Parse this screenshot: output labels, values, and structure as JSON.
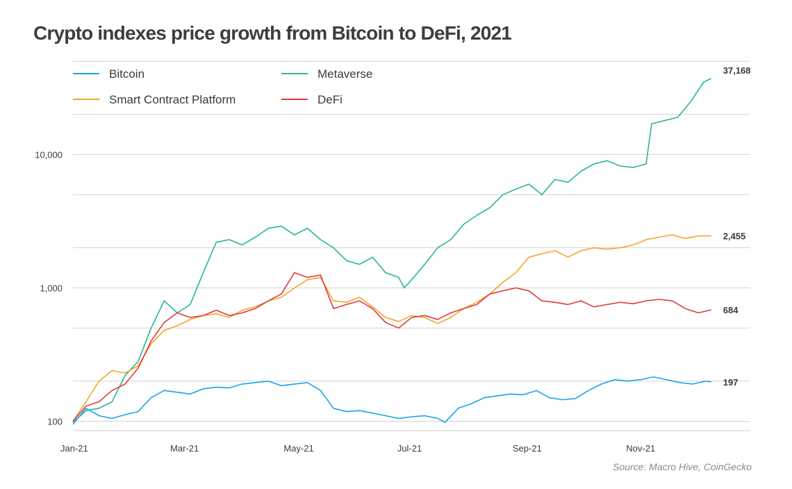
{
  "title": "Crypto indexes price growth from Bitcoin to DeFi, 2021",
  "source": "Source: Macro Hive, CoinGecko",
  "chart_data": {
    "type": "line",
    "yscale": "log",
    "ylim": [
      85,
      52000
    ],
    "xlim": [
      "2021-01-01",
      "2021-12-31"
    ],
    "y_ticks": [
      {
        "value": 100,
        "label": "100"
      },
      {
        "value": 1000,
        "label": "1,000"
      },
      {
        "value": 10000,
        "label": "10,000"
      }
    ],
    "x_ticks": [
      {
        "date": "2021-01-01",
        "label": "Jan-21"
      },
      {
        "date": "2021-03-01",
        "label": "Mar-21"
      },
      {
        "date": "2021-05-01",
        "label": "May-21"
      },
      {
        "date": "2021-07-01",
        "label": "Jul-21"
      },
      {
        "date": "2021-09-01",
        "label": "Sep-21"
      },
      {
        "date": "2021-11-01",
        "label": "Nov-21"
      }
    ],
    "grid": "horizontal",
    "legend": "top-left",
    "series": [
      {
        "name": "Bitcoin",
        "color": "#1aa3e8",
        "end_label": "197",
        "points": [
          [
            "2021-01-01",
            95
          ],
          [
            "2021-01-08",
            125
          ],
          [
            "2021-01-15",
            110
          ],
          [
            "2021-01-22",
            105
          ],
          [
            "2021-01-29",
            112
          ],
          [
            "2021-02-05",
            118
          ],
          [
            "2021-02-12",
            150
          ],
          [
            "2021-02-19",
            170
          ],
          [
            "2021-02-26",
            165
          ],
          [
            "2021-03-05",
            160
          ],
          [
            "2021-03-12",
            175
          ],
          [
            "2021-03-19",
            180
          ],
          [
            "2021-03-26",
            178
          ],
          [
            "2021-04-02",
            190
          ],
          [
            "2021-04-09",
            195
          ],
          [
            "2021-04-16",
            200
          ],
          [
            "2021-04-23",
            185
          ],
          [
            "2021-04-30",
            190
          ],
          [
            "2021-05-07",
            195
          ],
          [
            "2021-05-14",
            170
          ],
          [
            "2021-05-21",
            125
          ],
          [
            "2021-05-28",
            118
          ],
          [
            "2021-06-04",
            120
          ],
          [
            "2021-06-11",
            115
          ],
          [
            "2021-06-18",
            110
          ],
          [
            "2021-06-25",
            105
          ],
          [
            "2021-07-02",
            108
          ],
          [
            "2021-07-09",
            110
          ],
          [
            "2021-07-16",
            105
          ],
          [
            "2021-07-20",
            98
          ],
          [
            "2021-07-27",
            125
          ],
          [
            "2021-08-03",
            135
          ],
          [
            "2021-08-10",
            150
          ],
          [
            "2021-08-17",
            155
          ],
          [
            "2021-08-24",
            160
          ],
          [
            "2021-08-31",
            158
          ],
          [
            "2021-09-07",
            170
          ],
          [
            "2021-09-14",
            150
          ],
          [
            "2021-09-21",
            145
          ],
          [
            "2021-09-28",
            148
          ],
          [
            "2021-10-05",
            170
          ],
          [
            "2021-10-12",
            190
          ],
          [
            "2021-10-19",
            205
          ],
          [
            "2021-10-26",
            200
          ],
          [
            "2021-11-02",
            205
          ],
          [
            "2021-11-09",
            215
          ],
          [
            "2021-11-16",
            205
          ],
          [
            "2021-11-23",
            195
          ],
          [
            "2021-11-30",
            190
          ],
          [
            "2021-12-07",
            200
          ],
          [
            "2021-12-10",
            197
          ]
        ]
      },
      {
        "name": "Metaverse",
        "color": "#27b597",
        "end_label": "37,168",
        "points": [
          [
            "2021-01-01",
            98
          ],
          [
            "2021-01-08",
            120
          ],
          [
            "2021-01-15",
            125
          ],
          [
            "2021-01-22",
            140
          ],
          [
            "2021-01-29",
            220
          ],
          [
            "2021-02-05",
            280
          ],
          [
            "2021-02-12",
            500
          ],
          [
            "2021-02-19",
            800
          ],
          [
            "2021-02-26",
            650
          ],
          [
            "2021-03-05",
            750
          ],
          [
            "2021-03-12",
            1300
          ],
          [
            "2021-03-19",
            2200
          ],
          [
            "2021-03-26",
            2300
          ],
          [
            "2021-04-02",
            2100
          ],
          [
            "2021-04-09",
            2400
          ],
          [
            "2021-04-16",
            2800
          ],
          [
            "2021-04-23",
            2900
          ],
          [
            "2021-04-30",
            2500
          ],
          [
            "2021-05-07",
            2800
          ],
          [
            "2021-05-14",
            2300
          ],
          [
            "2021-05-21",
            2000
          ],
          [
            "2021-05-28",
            1600
          ],
          [
            "2021-06-04",
            1500
          ],
          [
            "2021-06-11",
            1700
          ],
          [
            "2021-06-18",
            1300
          ],
          [
            "2021-06-25",
            1200
          ],
          [
            "2021-06-28",
            1000
          ],
          [
            "2021-07-02",
            1150
          ],
          [
            "2021-07-09",
            1500
          ],
          [
            "2021-07-16",
            2000
          ],
          [
            "2021-07-23",
            2300
          ],
          [
            "2021-07-30",
            3000
          ],
          [
            "2021-08-06",
            3500
          ],
          [
            "2021-08-13",
            4000
          ],
          [
            "2021-08-20",
            5000
          ],
          [
            "2021-08-27",
            5500
          ],
          [
            "2021-09-03",
            6000
          ],
          [
            "2021-09-10",
            5000
          ],
          [
            "2021-09-17",
            6500
          ],
          [
            "2021-09-24",
            6200
          ],
          [
            "2021-10-01",
            7500
          ],
          [
            "2021-10-08",
            8500
          ],
          [
            "2021-10-15",
            9000
          ],
          [
            "2021-10-22",
            8200
          ],
          [
            "2021-10-29",
            8000
          ],
          [
            "2021-11-05",
            8500
          ],
          [
            "2021-11-08",
            17000
          ],
          [
            "2021-11-15",
            18000
          ],
          [
            "2021-11-22",
            19000
          ],
          [
            "2021-11-29",
            25000
          ],
          [
            "2021-12-06",
            35000
          ],
          [
            "2021-12-10",
            37168
          ]
        ]
      },
      {
        "name": "Smart Contract Platform",
        "color": "#f2a52b",
        "end_label": "2,455",
        "points": [
          [
            "2021-01-01",
            100
          ],
          [
            "2021-01-08",
            140
          ],
          [
            "2021-01-15",
            200
          ],
          [
            "2021-01-22",
            240
          ],
          [
            "2021-01-29",
            230
          ],
          [
            "2021-02-05",
            260
          ],
          [
            "2021-02-12",
            380
          ],
          [
            "2021-02-19",
            480
          ],
          [
            "2021-02-26",
            520
          ],
          [
            "2021-03-05",
            580
          ],
          [
            "2021-03-12",
            620
          ],
          [
            "2021-03-19",
            640
          ],
          [
            "2021-03-26",
            600
          ],
          [
            "2021-04-02",
            680
          ],
          [
            "2021-04-09",
            720
          ],
          [
            "2021-04-16",
            800
          ],
          [
            "2021-04-23",
            850
          ],
          [
            "2021-04-30",
            1000
          ],
          [
            "2021-05-07",
            1150
          ],
          [
            "2021-05-14",
            1200
          ],
          [
            "2021-05-21",
            800
          ],
          [
            "2021-05-28",
            780
          ],
          [
            "2021-06-04",
            850
          ],
          [
            "2021-06-11",
            720
          ],
          [
            "2021-06-18",
            600
          ],
          [
            "2021-06-25",
            560
          ],
          [
            "2021-07-02",
            620
          ],
          [
            "2021-07-09",
            600
          ],
          [
            "2021-07-16",
            540
          ],
          [
            "2021-07-23",
            600
          ],
          [
            "2021-07-30",
            700
          ],
          [
            "2021-08-06",
            780
          ],
          [
            "2021-08-13",
            900
          ],
          [
            "2021-08-20",
            1100
          ],
          [
            "2021-08-27",
            1300
          ],
          [
            "2021-09-03",
            1700
          ],
          [
            "2021-09-10",
            1800
          ],
          [
            "2021-09-17",
            1900
          ],
          [
            "2021-09-24",
            1700
          ],
          [
            "2021-10-01",
            1900
          ],
          [
            "2021-10-08",
            2000
          ],
          [
            "2021-10-15",
            1950
          ],
          [
            "2021-10-22",
            2000
          ],
          [
            "2021-10-29",
            2100
          ],
          [
            "2021-11-05",
            2300
          ],
          [
            "2021-11-12",
            2400
          ],
          [
            "2021-11-19",
            2500
          ],
          [
            "2021-11-26",
            2350
          ],
          [
            "2021-12-03",
            2450
          ],
          [
            "2021-12-10",
            2455
          ]
        ]
      },
      {
        "name": "DeFi",
        "color": "#e03a3a",
        "end_label": "684",
        "points": [
          [
            "2021-01-01",
            100
          ],
          [
            "2021-01-08",
            130
          ],
          [
            "2021-01-15",
            140
          ],
          [
            "2021-01-22",
            170
          ],
          [
            "2021-01-29",
            190
          ],
          [
            "2021-02-05",
            250
          ],
          [
            "2021-02-12",
            400
          ],
          [
            "2021-02-19",
            550
          ],
          [
            "2021-02-26",
            650
          ],
          [
            "2021-03-05",
            600
          ],
          [
            "2021-03-12",
            620
          ],
          [
            "2021-03-19",
            680
          ],
          [
            "2021-03-26",
            620
          ],
          [
            "2021-04-02",
            650
          ],
          [
            "2021-04-09",
            700
          ],
          [
            "2021-04-16",
            800
          ],
          [
            "2021-04-23",
            900
          ],
          [
            "2021-04-30",
            1300
          ],
          [
            "2021-05-07",
            1200
          ],
          [
            "2021-05-14",
            1250
          ],
          [
            "2021-05-21",
            700
          ],
          [
            "2021-05-28",
            750
          ],
          [
            "2021-06-04",
            800
          ],
          [
            "2021-06-11",
            700
          ],
          [
            "2021-06-18",
            550
          ],
          [
            "2021-06-25",
            500
          ],
          [
            "2021-07-02",
            600
          ],
          [
            "2021-07-09",
            620
          ],
          [
            "2021-07-16",
            580
          ],
          [
            "2021-07-23",
            650
          ],
          [
            "2021-07-30",
            700
          ],
          [
            "2021-08-06",
            750
          ],
          [
            "2021-08-13",
            900
          ],
          [
            "2021-08-20",
            950
          ],
          [
            "2021-08-27",
            1000
          ],
          [
            "2021-09-03",
            950
          ],
          [
            "2021-09-10",
            800
          ],
          [
            "2021-09-17",
            780
          ],
          [
            "2021-09-24",
            750
          ],
          [
            "2021-10-01",
            800
          ],
          [
            "2021-10-08",
            720
          ],
          [
            "2021-10-15",
            750
          ],
          [
            "2021-10-22",
            780
          ],
          [
            "2021-10-29",
            760
          ],
          [
            "2021-11-05",
            800
          ],
          [
            "2021-11-12",
            820
          ],
          [
            "2021-11-19",
            800
          ],
          [
            "2021-11-26",
            700
          ],
          [
            "2021-12-03",
            650
          ],
          [
            "2021-12-10",
            684
          ]
        ]
      }
    ]
  }
}
